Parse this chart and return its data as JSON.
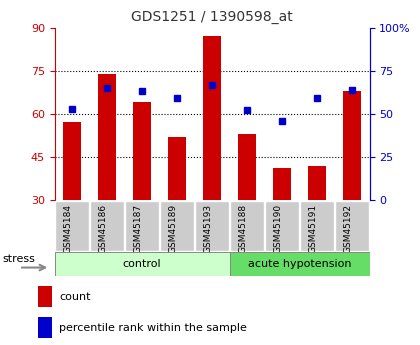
{
  "title": "GDS1251 / 1390598_at",
  "samples": [
    "GSM45184",
    "GSM45186",
    "GSM45187",
    "GSM45189",
    "GSM45193",
    "GSM45188",
    "GSM45190",
    "GSM45191",
    "GSM45192"
  ],
  "counts": [
    57,
    74,
    64,
    52,
    87,
    53,
    41,
    42,
    68
  ],
  "percentiles": [
    53,
    65,
    63,
    59,
    67,
    52,
    46,
    59,
    64
  ],
  "groups": [
    {
      "label": "control",
      "start": 0,
      "end": 5,
      "color": "#ccffcc"
    },
    {
      "label": "acute hypotension",
      "start": 5,
      "end": 9,
      "color": "#66dd66"
    }
  ],
  "left_ylim": [
    30,
    90
  ],
  "left_yticks": [
    30,
    45,
    60,
    75,
    90
  ],
  "right_ylim": [
    0,
    100
  ],
  "right_yticks": [
    0,
    25,
    50,
    75,
    100
  ],
  "right_yticklabels": [
    "0",
    "25",
    "50",
    "75",
    "100%"
  ],
  "bar_color": "#cc0000",
  "dot_color": "#0000cc",
  "tick_label_bg": "#cccccc",
  "title_color": "#333333",
  "left_tick_color": "#cc0000",
  "right_tick_color": "#0000cc",
  "stress_label": "stress",
  "legend_count": "count",
  "legend_percentile": "percentile rank within the sample",
  "grid_lines": [
    45,
    60,
    75
  ]
}
